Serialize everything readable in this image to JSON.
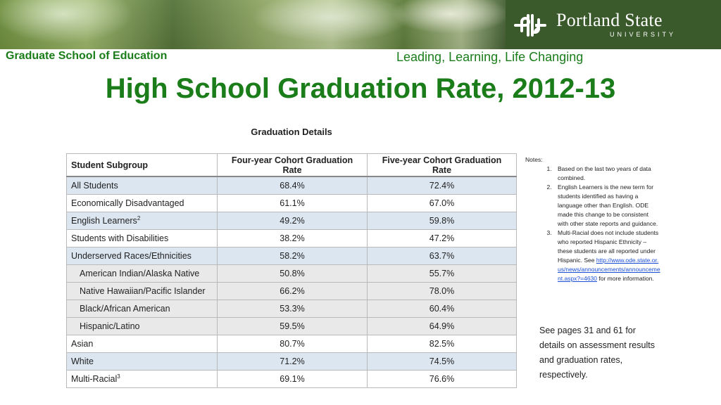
{
  "header": {
    "university_name": "Portland State",
    "university_sub": "UNIVERSITY",
    "school": "Graduate School of Education",
    "tagline": "Leading, Learning, Life Changing"
  },
  "slide": {
    "title": "High School Graduation Rate, 2012-13"
  },
  "table": {
    "caption": "Graduation Details",
    "headers": [
      "Student Subgroup",
      "Four-year Cohort Graduation Rate",
      "Five-year Cohort Graduation Rate"
    ],
    "rows": [
      {
        "label": "All Students",
        "sup": "",
        "four": "68.4%",
        "five": "72.4%"
      },
      {
        "label": "Economically Disadvantaged",
        "sup": "",
        "four": "61.1%",
        "five": "67.0%"
      },
      {
        "label": "English Learners",
        "sup": "2",
        "four": "49.2%",
        "five": "59.8%"
      },
      {
        "label": "Students with Disabilities",
        "sup": "",
        "four": "38.2%",
        "five": "47.2%"
      },
      {
        "label": "Underserved Races/Ethnicities",
        "sup": "",
        "four": "58.2%",
        "five": "63.7%"
      },
      {
        "label": "American Indian/Alaska Native",
        "sup": "",
        "four": "50.8%",
        "five": "55.7%"
      },
      {
        "label": "Native Hawaiian/Pacific Islander",
        "sup": "",
        "four": "66.2%",
        "five": "78.0%"
      },
      {
        "label": "Black/African American",
        "sup": "",
        "four": "53.3%",
        "five": "60.4%"
      },
      {
        "label": "Hispanic/Latino",
        "sup": "",
        "four": "59.5%",
        "five": "64.9%"
      },
      {
        "label": "Asian",
        "sup": "",
        "four": "80.7%",
        "five": "82.5%"
      },
      {
        "label": "White",
        "sup": "",
        "four": "71.2%",
        "five": "74.5%"
      },
      {
        "label": "Multi-Racial",
        "sup": "3",
        "four": "69.1%",
        "five": "76.6%"
      }
    ]
  },
  "notes": {
    "heading": "Notes:",
    "items": [
      "Based on the last two years of data combined.",
      "English Learners is the new term for students identified as having a language other than English.  ODE made this change to be consistent with other state reports and guidance.",
      "Multi-Racial does not include students who reported Hispanic Ethnicity – these students are all reported under Hispanic.  See"
    ],
    "link": "http://www.ode.state.or.us/news/announcements/announcement.aspx?=4630",
    "link_suffix": " for more information.",
    "see_pages": "See pages 31 and 61 for details on assessment results and graduation rates, respectively."
  },
  "colors": {
    "title_green": "#1a7d1a",
    "row_blue": "#dce6f1",
    "row_gray": "#e9e9e9",
    "psu_green": "#3b5a2c"
  }
}
